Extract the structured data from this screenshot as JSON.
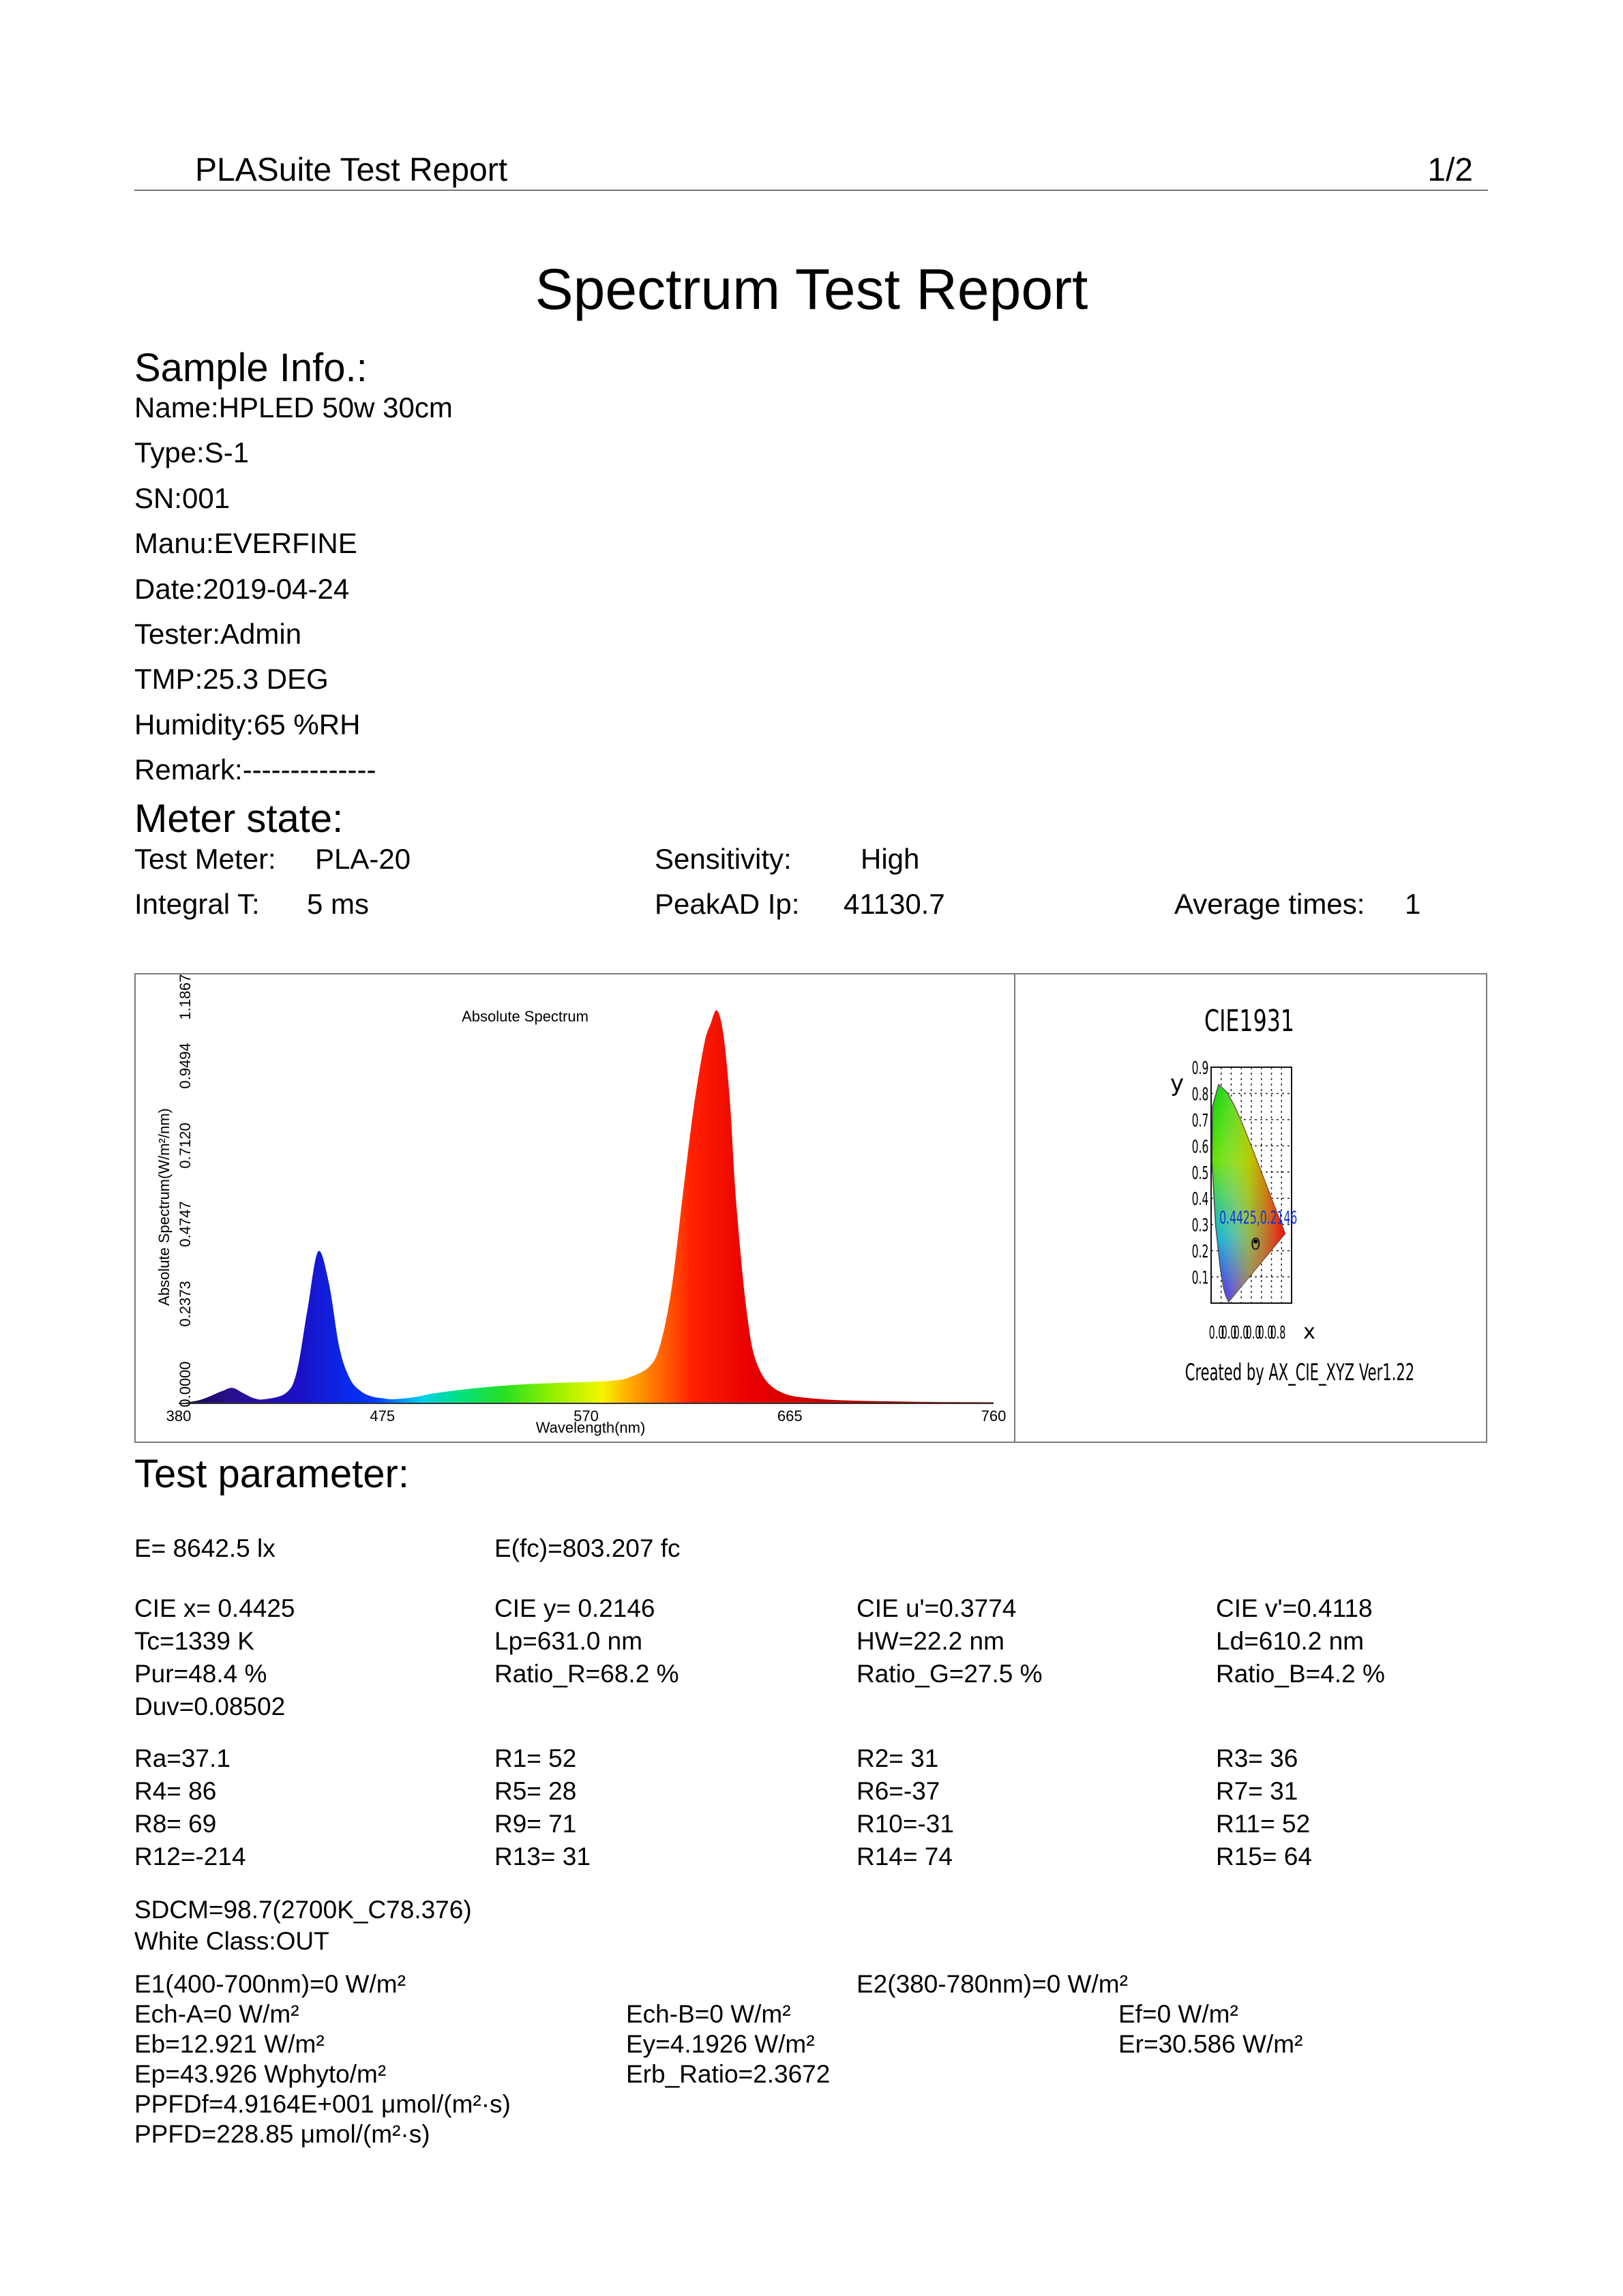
{
  "header": {
    "app_title": "PLASuite Test Report",
    "page": "1/2"
  },
  "title": "Spectrum Test Report",
  "sample": {
    "heading": "Sample Info.:",
    "lines": [
      "Name:HPLED 50w 30cm",
      "Type:S-1",
      "SN:001",
      "Manu:EVERFINE",
      "Date:2019-04-24",
      "Tester:Admin",
      "TMP:25.3 DEG",
      "Humidity:65 %RH",
      "Remark:--------------"
    ]
  },
  "meter": {
    "heading": "Meter state:",
    "test_meter_label": "Test Meter:",
    "test_meter_value": "PLA-20",
    "sensitivity_label": "Sensitivity:",
    "sensitivity_value": "High",
    "integral_label": "Integral T:",
    "integral_value": "5 ms",
    "peakad_label": "PeakAD Ip:",
    "peakad_value": "41130.7",
    "avg_label": "Average times:",
    "avg_value": "1"
  },
  "chart_data": [
    {
      "type": "area",
      "title": "Absolute Spectrum",
      "xlabel": "Wavelength(nm)",
      "ylabel": "Absolute Spectrum(W/m²/nm)",
      "xlim": [
        380,
        760
      ],
      "ylim": [
        0,
        1.1867
      ],
      "x_ticks": [
        "380",
        "475",
        "570",
        "665",
        "760"
      ],
      "y_ticks": [
        "0.0000",
        "0.2373",
        "0.4747",
        "0.7120",
        "0.9494",
        "1.1867"
      ],
      "x": [
        380,
        390,
        400,
        405,
        410,
        415,
        420,
        430,
        435,
        440,
        445,
        450,
        455,
        460,
        465,
        470,
        475,
        480,
        490,
        500,
        520,
        540,
        560,
        580,
        590,
        600,
        605,
        610,
        615,
        620,
        625,
        628,
        631,
        634,
        637,
        640,
        645,
        650,
        660,
        680,
        720,
        760
      ],
      "values": [
        0.0,
        0.01,
        0.035,
        0.045,
        0.03,
        0.015,
        0.012,
        0.03,
        0.09,
        0.27,
        0.44,
        0.35,
        0.16,
        0.07,
        0.035,
        0.02,
        0.015,
        0.012,
        0.018,
        0.03,
        0.045,
        0.055,
        0.06,
        0.065,
        0.075,
        0.11,
        0.18,
        0.34,
        0.6,
        0.85,
        1.04,
        1.1,
        1.14,
        1.07,
        0.88,
        0.58,
        0.26,
        0.11,
        0.035,
        0.012,
        0.005,
        0.003
      ]
    },
    {
      "type": "scatter",
      "title": "CIE1931",
      "xlabel": "x",
      "ylabel": "y",
      "xlim": [
        0,
        0.8
      ],
      "ylim": [
        0,
        0.9
      ],
      "x_ticks": [
        "0.0",
        "0.0",
        "0.0",
        "0.0",
        "0.0",
        "0.8"
      ],
      "y_ticks": [
        "0.1",
        "0.2",
        "0.3",
        "0.4",
        "0.5",
        "0.6",
        "0.7",
        "0.8",
        "0.9"
      ],
      "point": {
        "x": 0.4425,
        "y": 0.2146,
        "label": "0.4425,0.2146"
      },
      "origin_label": "0",
      "credit": "Created by AX_CIE_XYZ Ver1.22"
    }
  ],
  "params": {
    "heading": "Test parameter:",
    "rows": [
      [
        "E=  8642.5 lx",
        "E(fc)=803.207 fc",
        "",
        ""
      ],
      [
        "CIE x= 0.4425",
        "CIE y= 0.2146",
        "CIE u'=0.3774",
        "CIE v'=0.4118"
      ],
      [
        "Tc=1339 K",
        "Lp=631.0 nm",
        "HW=22.2 nm",
        "Ld=610.2 nm"
      ],
      [
        "Pur=48.4 %",
        "Ratio_R=68.2 %",
        "Ratio_G=27.5 %",
        "Ratio_B=4.2 %"
      ],
      [
        "Duv=0.08502",
        "",
        "",
        ""
      ],
      [
        "Ra=37.1",
        "R1= 52",
        "R2= 31",
        "R3= 36"
      ],
      [
        "R4= 86",
        "R5= 28",
        "R6=-37",
        "R7= 31"
      ],
      [
        "R8= 69",
        "R9= 71",
        "R10=-31",
        "R11= 52"
      ],
      [
        "R12=-214",
        "R13= 31",
        "R14= 74",
        "R15= 64"
      ]
    ],
    "sdcm": "SDCM=98.7(2700K_C78.376)",
    "white_class": "White Class:OUT",
    "e1": "E1(400-700nm)=0 W/m²",
    "e2": "E2(380-780nm)=0 W/m²",
    "ech_a": "Ech-A=0 W/m²",
    "ech_b": "Ech-B=0 W/m²",
    "ef": "Ef=0 W/m²",
    "eb": "Eb=12.921 W/m²",
    "ey": "Ey=4.1926 W/m²",
    "er": "Er=30.586 W/m²",
    "ep": "Ep=43.926 Wphyto/m²",
    "erb": "Erb_Ratio=2.3672",
    "ppfdf": "PPFDf=4.9164E+001 μmol/(m²·s)",
    "ppfd": "PPFD=228.85 μmol/(m²·s)"
  }
}
